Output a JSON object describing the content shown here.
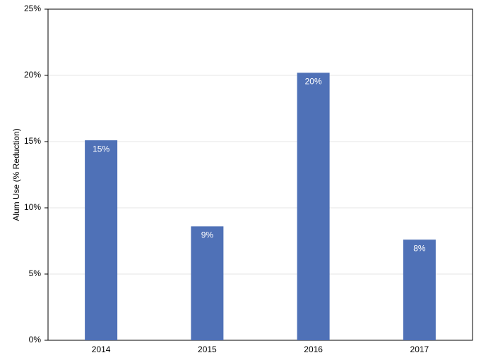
{
  "chart_data": {
    "type": "bar",
    "y_label": "Alum Use (% Reduction)",
    "categories": [
      "2014",
      "2015",
      "2016",
      "2017"
    ],
    "values": [
      15.1,
      8.6,
      20.2,
      7.6
    ],
    "value_labels": [
      "15%",
      "9%",
      "20%",
      "8%"
    ],
    "color": "#4f71b7",
    "ylim": [
      0,
      25
    ],
    "yticks": [
      {
        "value": 0,
        "label": "0%"
      },
      {
        "value": 5,
        "label": "5%"
      },
      {
        "value": 10,
        "label": "10%"
      },
      {
        "value": 15,
        "label": "15%"
      },
      {
        "value": 20,
        "label": "20%"
      },
      {
        "value": 25,
        "label": "25%"
      }
    ],
    "grid": true
  }
}
